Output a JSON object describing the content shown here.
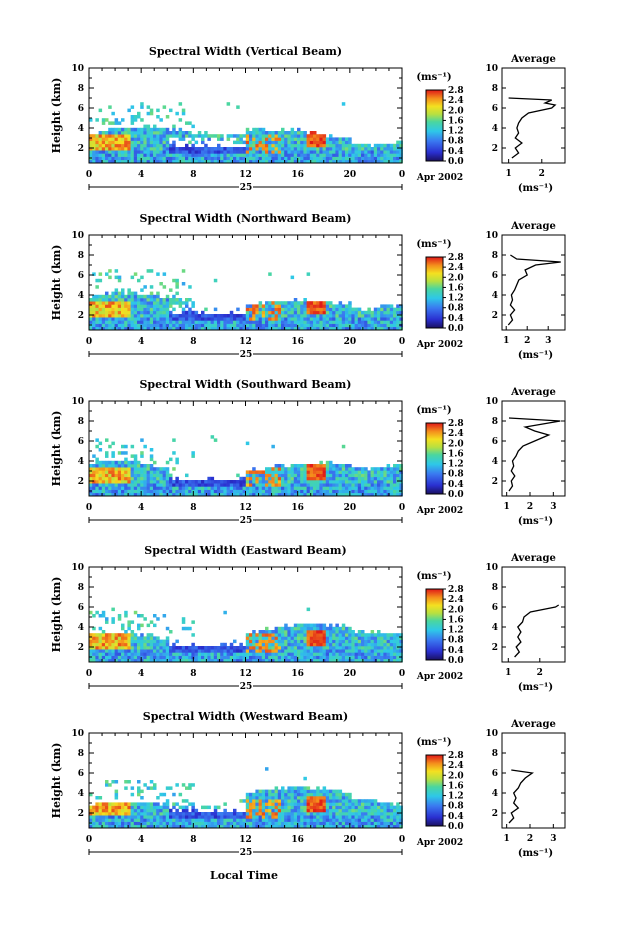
{
  "figure": {
    "x_axis_title": "Local Time",
    "date_label": "25",
    "month_label": "Apr 2002",
    "colorbar_unit": "(ms⁻¹)",
    "avg_title": "Average",
    "avg_xlabel": "(ms⁻¹)"
  },
  "chart_data": [
    {
      "type": "heatmap",
      "title": "Spectral Width (Vertical Beam)",
      "ylabel": "Height (km)",
      "xlabel": "Local Time",
      "x_ticks": [
        "0",
        "4",
        "8",
        "12",
        "16",
        "20",
        "0"
      ],
      "y_ticks": [
        "2",
        "4",
        "6",
        "8",
        "10"
      ],
      "xlim": [
        0,
        24
      ],
      "ylim": [
        0.5,
        10
      ],
      "colorbar": {
        "label": "(ms⁻¹)",
        "ticks": [
          "0.0",
          "0.4",
          "0.8",
          "1.2",
          "1.6",
          "2.0",
          "2.4",
          "2.8"
        ],
        "range": [
          0,
          2.8
        ]
      },
      "avg_profile": {
        "title": "Average",
        "xlabel": "(ms⁻¹)",
        "x_ticks": [
          "1",
          "2"
        ],
        "xlim": [
          0.8,
          2.7
        ],
        "y_ticks": [
          "2",
          "4",
          "6",
          "8",
          "10"
        ],
        "heights": [
          1.0,
          1.5,
          2.0,
          2.5,
          3.0,
          3.5,
          4.0,
          4.5,
          5.0,
          5.5,
          6.0,
          6.3,
          6.5,
          6.8,
          7.0
        ],
        "values": [
          1.1,
          1.3,
          1.2,
          1.4,
          1.2,
          1.3,
          1.25,
          1.3,
          1.4,
          1.6,
          2.3,
          2.4,
          2.1,
          2.3,
          1.0
        ]
      }
    },
    {
      "type": "heatmap",
      "title": "Spectral Width (Northward Beam)",
      "ylabel": "Height (km)",
      "xlabel": "Local Time",
      "x_ticks": [
        "0",
        "4",
        "8",
        "12",
        "16",
        "20",
        "0"
      ],
      "y_ticks": [
        "2",
        "4",
        "6",
        "8",
        "10"
      ],
      "xlim": [
        0,
        24
      ],
      "ylim": [
        0.5,
        10
      ],
      "colorbar": {
        "label": "(ms⁻¹)",
        "ticks": [
          "0.0",
          "0.4",
          "0.8",
          "1.2",
          "1.6",
          "2.0",
          "2.4",
          "2.8"
        ],
        "range": [
          0,
          2.8
        ]
      },
      "avg_profile": {
        "title": "Average",
        "xlabel": "(ms⁻¹)",
        "x_ticks": [
          "1",
          "2",
          "3"
        ],
        "xlim": [
          0.8,
          3.8
        ],
        "y_ticks": [
          "2",
          "4",
          "6",
          "8",
          "10"
        ],
        "heights": [
          1.0,
          1.5,
          2.0,
          2.5,
          3.0,
          3.5,
          4.0,
          4.5,
          5.0,
          5.5,
          6.0,
          6.5,
          7.0,
          7.3,
          7.6,
          8.0
        ],
        "values": [
          1.1,
          1.3,
          1.2,
          1.4,
          1.2,
          1.3,
          1.25,
          1.4,
          1.5,
          1.6,
          2.0,
          1.9,
          2.4,
          3.6,
          1.5,
          1.2
        ]
      }
    },
    {
      "type": "heatmap",
      "title": "Spectral Width (Southward Beam)",
      "ylabel": "Height (km)",
      "xlabel": "Local Time",
      "x_ticks": [
        "0",
        "4",
        "8",
        "12",
        "16",
        "20",
        "0"
      ],
      "y_ticks": [
        "2",
        "4",
        "6",
        "8",
        "10"
      ],
      "xlim": [
        0,
        24
      ],
      "ylim": [
        0.5,
        10
      ],
      "colorbar": {
        "label": "(ms⁻¹)",
        "ticks": [
          "0.0",
          "0.4",
          "0.8",
          "1.2",
          "1.6",
          "2.0",
          "2.4",
          "2.8"
        ],
        "range": [
          0,
          2.8
        ]
      },
      "avg_profile": {
        "title": "Average",
        "xlabel": "(ms⁻¹)",
        "x_ticks": [
          "1",
          "2",
          "3"
        ],
        "xlim": [
          0.8,
          3.5
        ],
        "y_ticks": [
          "2",
          "4",
          "6",
          "8",
          "10"
        ],
        "heights": [
          1.0,
          1.5,
          2.0,
          2.5,
          3.0,
          3.5,
          4.0,
          4.5,
          5.0,
          5.5,
          6.0,
          6.3,
          6.6,
          7.0,
          7.4,
          8.0,
          8.3
        ],
        "values": [
          1.1,
          1.25,
          1.2,
          1.35,
          1.2,
          1.3,
          1.25,
          1.4,
          1.5,
          1.7,
          2.2,
          2.5,
          2.8,
          2.2,
          1.8,
          3.3,
          1.1
        ]
      }
    },
    {
      "type": "heatmap",
      "title": "Spectral Width (Eastward Beam)",
      "ylabel": "Height (km)",
      "xlabel": "Local Time",
      "x_ticks": [
        "0",
        "4",
        "8",
        "12",
        "16",
        "20",
        "0"
      ],
      "y_ticks": [
        "2",
        "4",
        "6",
        "8",
        "10"
      ],
      "xlim": [
        0,
        24
      ],
      "ylim": [
        0.5,
        10
      ],
      "colorbar": {
        "label": "(ms⁻¹)",
        "ticks": [
          "0.0",
          "0.4",
          "0.8",
          "1.2",
          "1.6",
          "2.0",
          "2.4",
          "2.8"
        ],
        "range": [
          0,
          2.8
        ]
      },
      "avg_profile": {
        "title": "Average",
        "xlabel": "(ms⁻¹)",
        "x_ticks": [
          "1",
          "2"
        ],
        "xlim": [
          0.8,
          2.8
        ],
        "y_ticks": [
          "2",
          "4",
          "6",
          "8",
          "10"
        ],
        "heights": [
          1.0,
          1.5,
          2.0,
          2.5,
          3.0,
          3.5,
          4.0,
          4.5,
          5.0,
          5.5,
          6.0,
          6.2
        ],
        "values": [
          1.2,
          1.35,
          1.25,
          1.4,
          1.3,
          1.4,
          1.3,
          1.45,
          1.5,
          1.7,
          2.5,
          2.6
        ]
      }
    },
    {
      "type": "heatmap",
      "title": "Spectral Width (Westward Beam)",
      "ylabel": "Height (km)",
      "xlabel": "Local Time",
      "x_ticks": [
        "0",
        "4",
        "8",
        "12",
        "16",
        "20",
        "0"
      ],
      "y_ticks": [
        "2",
        "4",
        "6",
        "8",
        "10"
      ],
      "xlim": [
        0,
        24
      ],
      "ylim": [
        0.5,
        10
      ],
      "colorbar": {
        "label": "(ms⁻¹)",
        "ticks": [
          "0.0",
          "0.4",
          "0.8",
          "1.2",
          "1.6",
          "2.0",
          "2.4",
          "2.8"
        ],
        "range": [
          0,
          2.8
        ]
      },
      "avg_profile": {
        "title": "Average",
        "xlabel": "(ms⁻¹)",
        "x_ticks": [
          "1",
          "2",
          "3"
        ],
        "xlim": [
          0.8,
          3.5
        ],
        "y_ticks": [
          "2",
          "4",
          "6",
          "8",
          "10"
        ],
        "heights": [
          1.0,
          1.5,
          2.0,
          2.5,
          3.0,
          3.5,
          4.0,
          4.5,
          5.0,
          5.5,
          6.0,
          6.3
        ],
        "values": [
          1.1,
          1.3,
          1.2,
          1.5,
          1.3,
          1.4,
          1.3,
          1.5,
          1.6,
          1.8,
          2.1,
          1.2
        ]
      }
    }
  ]
}
